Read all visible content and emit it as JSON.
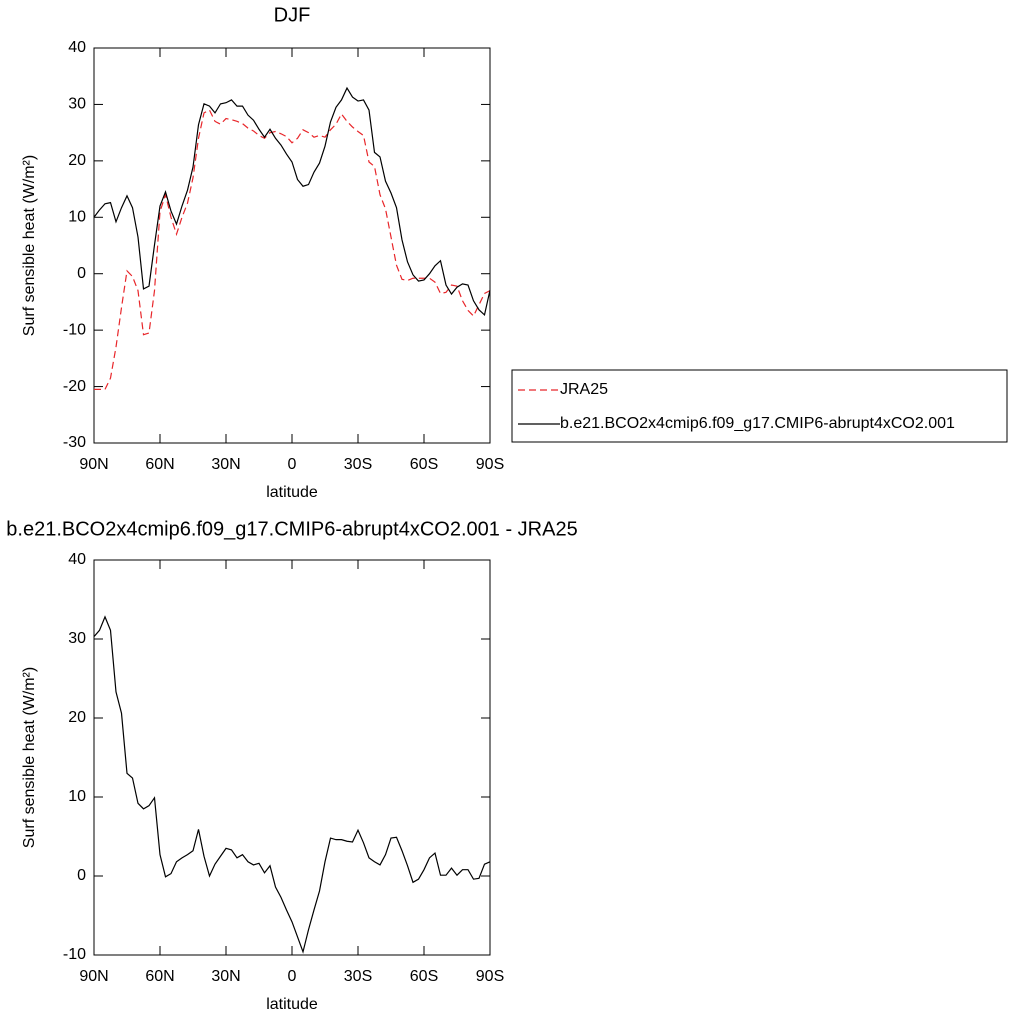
{
  "chart_data": [
    {
      "type": "line",
      "title": "DJF",
      "xlabel": "latitude",
      "ylabel": "Surf sensible heat (W/m²)",
      "x": [
        90,
        87.5,
        85,
        82.5,
        80,
        77.5,
        75,
        72.5,
        70,
        67.5,
        65,
        62.5,
        60,
        57.5,
        55,
        52.5,
        50,
        47.5,
        45,
        42.5,
        40,
        37.5,
        35,
        32.5,
        30,
        27.5,
        25,
        22.5,
        20,
        17.5,
        15,
        12.5,
        10,
        7.5,
        5,
        2.5,
        0,
        -2.5,
        -5,
        -7.5,
        -10,
        -12.5,
        -15,
        -17.5,
        -20,
        -22.5,
        -25,
        -27.5,
        -30,
        -32.5,
        -35,
        -37.5,
        -40,
        -42.5,
        -45,
        -47.5,
        -50,
        -52.5,
        -55,
        -57.5,
        -60,
        -62.5,
        -65,
        -67.5,
        -70,
        -72.5,
        -75,
        -77.5,
        -80,
        -82.5,
        -85,
        -87.5,
        -90
      ],
      "series": [
        {
          "name": "JRA25",
          "color": "#e8262a",
          "dashed": true,
          "values": [
            -20.5,
            -20.5,
            -20.5,
            -18.5,
            -13,
            -6,
            0.5,
            -0.5,
            -3,
            -10.8,
            -10.5,
            -3,
            11,
            14,
            10,
            7,
            10,
            12.5,
            17,
            24,
            28.5,
            29,
            27,
            26.5,
            27.5,
            27.3,
            27,
            26.6,
            25.8,
            25.3,
            24.5,
            24,
            25,
            25.2,
            24.8,
            24.3,
            23.2,
            24,
            25.5,
            25,
            24.2,
            24.5,
            24.2,
            25.5,
            26.5,
            28.3,
            27,
            26,
            25.2,
            24.5,
            19.8,
            19,
            14,
            11.5,
            6.5,
            1.5,
            -1,
            -1.2,
            -0.8,
            -0.8,
            -0.8,
            -0.8,
            -1.5,
            -3.5,
            -3.3,
            -2,
            -2.2,
            -4.8,
            -6.5,
            -7.5,
            -5.5,
            -3.5,
            -3
          ]
        },
        {
          "name": "b.e21.BCO2x4cmip6.f09_g17.CMIP6-abrupt4xCO2.001",
          "color": "#000000",
          "dashed": false,
          "values": [
            10.0,
            11.3,
            12.4,
            12.6,
            9.2,
            11.7,
            13.8,
            11.7,
            6.5,
            -2.7,
            -2.2,
            5.1,
            12.0,
            14.5,
            11.1,
            8.8,
            12.0,
            14.8,
            18.9,
            26.4,
            30.1,
            29.7,
            28.5,
            30.1,
            30.3,
            30.8,
            29.7,
            29.7,
            28.1,
            27.2,
            25.6,
            24.2,
            25.6,
            24.0,
            22.8,
            21.2,
            19.8,
            16.7,
            15.5,
            15.8,
            18.0,
            19.6,
            22.6,
            26.9,
            29.5,
            30.8,
            32.9,
            31.3,
            30.6,
            30.8,
            29.0,
            21.5,
            20.7,
            16.4,
            14.3,
            11.7,
            6.0,
            2.1,
            -0.2,
            -1.3,
            -1.1,
            0.0,
            1.4,
            2.3,
            -2.0,
            -3.6,
            -2.4,
            -1.8,
            -2.0,
            -4.8,
            -6.4,
            -7.3,
            -2.9
          ]
        }
      ],
      "xlim": [
        90,
        -90
      ],
      "xticks": [
        {
          "value": 90,
          "label": "90N"
        },
        {
          "value": 60,
          "label": "60N"
        },
        {
          "value": 30,
          "label": "30N"
        },
        0,
        {
          "value": -30,
          "label": "30S"
        },
        {
          "value": -60,
          "label": "60S"
        },
        {
          "value": -90,
          "label": "90S"
        }
      ],
      "ylim": [
        -30,
        40
      ],
      "yticks": [
        40,
        30,
        20,
        10,
        0,
        -10,
        -20,
        -30
      ],
      "legend": "right"
    },
    {
      "type": "line",
      "title": "b.e21.BCO2x4cmip6.f09_g17.CMIP6-abrupt4xCO2.001 - JRA25",
      "xlabel": "latitude",
      "ylabel": "Surf sensible heat (W/m²)",
      "x": [
        90,
        87.5,
        85,
        82.5,
        80,
        77.5,
        75,
        72.5,
        70,
        67.5,
        65,
        62.5,
        60,
        57.5,
        55,
        52.5,
        50,
        47.5,
        45,
        42.5,
        40,
        37.5,
        35,
        32.5,
        30,
        27.5,
        25,
        22.5,
        20,
        17.5,
        15,
        12.5,
        10,
        7.5,
        5,
        2.5,
        0,
        -2.5,
        -5,
        -7.5,
        -10,
        -12.5,
        -15,
        -17.5,
        -20,
        -22.5,
        -25,
        -27.5,
        -30,
        -32.5,
        -35,
        -37.5,
        -40,
        -42.5,
        -45,
        -47.5,
        -50,
        -52.5,
        -55,
        -57.5,
        -60,
        -62.5,
        -65,
        -67.5,
        -70,
        -72.5,
        -75,
        -77.5,
        -80,
        -82.5,
        -85,
        -87.5,
        -90
      ],
      "values": [
        30.3,
        31.1,
        32.8,
        31.1,
        23.3,
        20.6,
        13.0,
        12.4,
        9.2,
        8.5,
        8.9,
        9.9,
        2.7,
        -0.1,
        0.3,
        1.8,
        2.3,
        2.7,
        3.2,
        5.9,
        2.5,
        0.0,
        1.5,
        2.5,
        3.5,
        3.3,
        2.3,
        2.7,
        1.8,
        1.4,
        1.6,
        0.4,
        1.3,
        -1.4,
        -2.7,
        -4.3,
        -5.8,
        -7.7,
        -9.6,
        -6.8,
        -4.3,
        -1.9,
        1.8,
        4.8,
        4.6,
        4.6,
        4.4,
        4.3,
        5.8,
        4.2,
        2.3,
        1.8,
        1.4,
        2.7,
        4.8,
        4.9,
        3.2,
        1.3,
        -0.8,
        -0.4,
        0.8,
        2.3,
        2.9,
        0.1,
        0.1,
        1.0,
        0.1,
        0.8,
        0.8,
        -0.4,
        -0.3,
        1.5,
        1.8
      ],
      "color": "#000000",
      "xlim": [
        90,
        -90
      ],
      "xticks": [
        {
          "value": 90,
          "label": "90N"
        },
        {
          "value": 60,
          "label": "60N"
        },
        {
          "value": 30,
          "label": "30N"
        },
        0,
        {
          "value": -30,
          "label": "30S"
        },
        {
          "value": -60,
          "label": "60S"
        },
        {
          "value": -90,
          "label": "90S"
        }
      ],
      "ylim": [
        -10,
        40
      ],
      "yticks": [
        40,
        30,
        20,
        10,
        0,
        -10
      ]
    }
  ]
}
